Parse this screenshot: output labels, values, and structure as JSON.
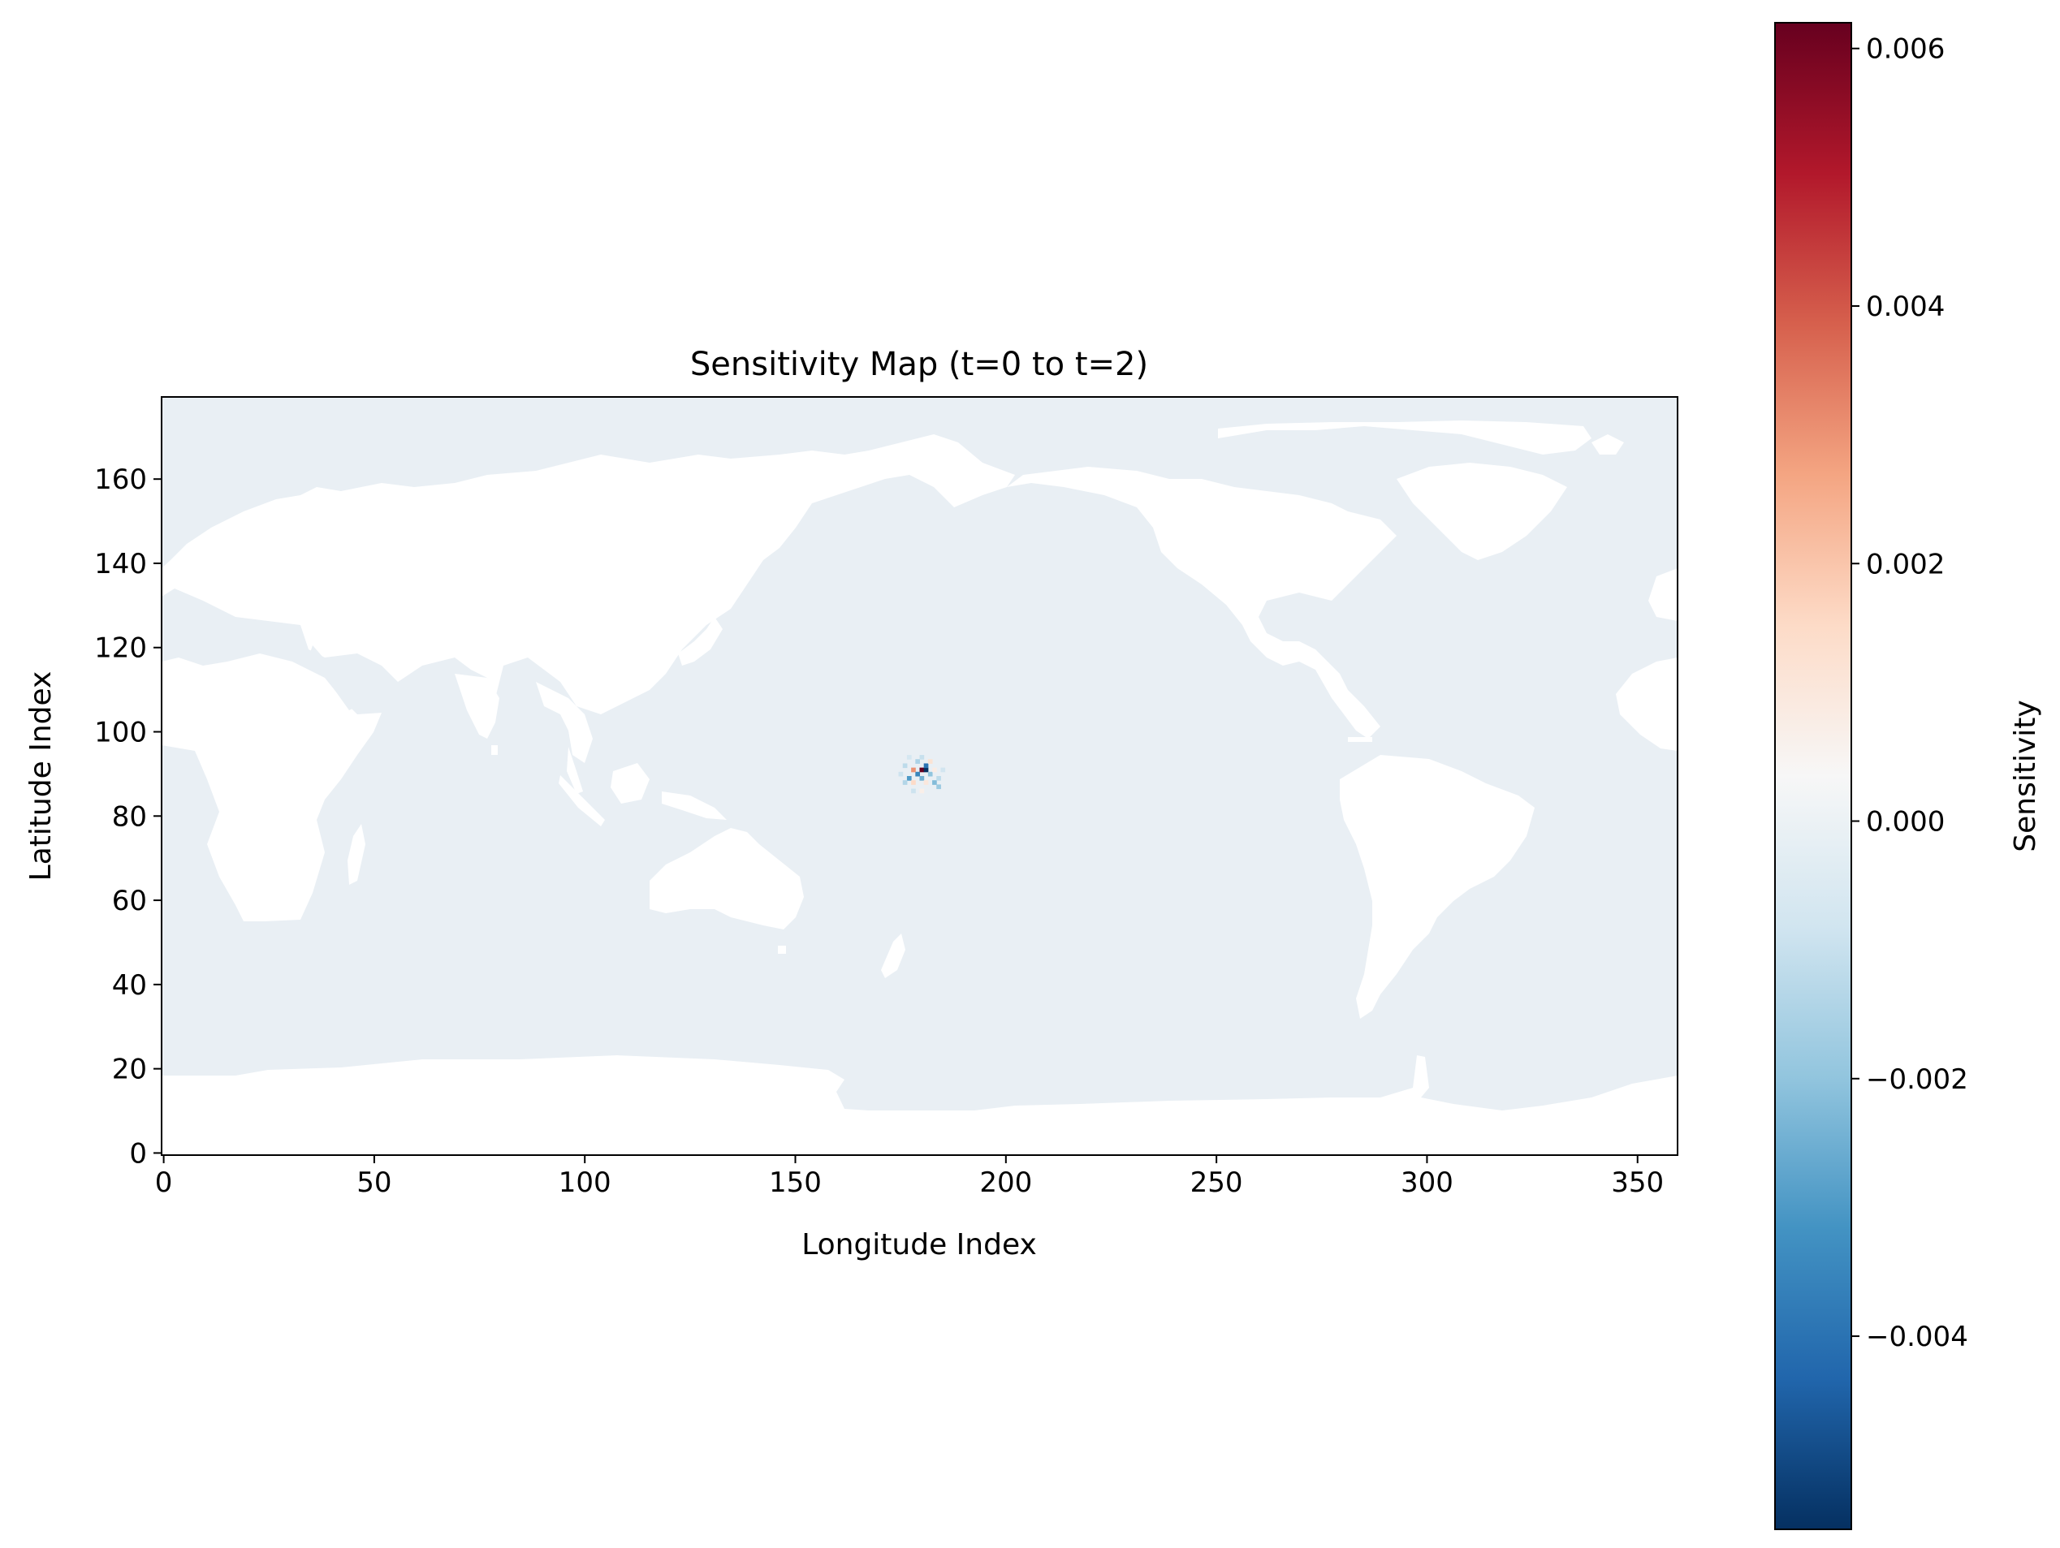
{
  "chart_data": {
    "type": "heatmap",
    "title": "Sensitivity Map (t=0 to t=2)",
    "xlabel": "Longitude Index",
    "ylabel": "Latitude Index",
    "xlim": [
      -0.5,
      359.5
    ],
    "ylim": [
      -0.5,
      179.5
    ],
    "x_ticks": [
      0,
      50,
      100,
      150,
      200,
      250,
      300,
      350
    ],
    "x_tick_labels": [
      "0",
      "50",
      "100",
      "150",
      "200",
      "250",
      "300",
      "350"
    ],
    "y_ticks": [
      0,
      20,
      40,
      60,
      80,
      100,
      120,
      140,
      160
    ],
    "y_tick_labels": [
      "0",
      "20",
      "40",
      "60",
      "80",
      "100",
      "120",
      "140",
      "160"
    ],
    "colorbar": {
      "label": "Sensitivity",
      "colormap": "RdBu_r",
      "range": [
        -0.0055,
        0.0062
      ],
      "ticks": [
        -0.004,
        -0.002,
        0.0,
        0.002,
        0.004,
        0.006
      ],
      "tick_labels": [
        "−0.004",
        "−0.002",
        "0.000",
        "0.002",
        "0.004",
        "0.006"
      ],
      "colors": [
        "#053061",
        "#2166ac",
        "#4393c3",
        "#92c5de",
        "#d1e5f0",
        "#f7f7f7",
        "#fddbc7",
        "#f4a582",
        "#d6604d",
        "#b2182b",
        "#67001f"
      ]
    },
    "ocean_value": -0.0002,
    "ocean_color": "#e9eff4",
    "land_color": "#ffffff",
    "land_value": "masked (no data)",
    "hotspot": {
      "center": [
        180,
        91
      ],
      "values": [
        {
          "x": 180,
          "y": 91,
          "v": 0.0062
        },
        {
          "x": 181,
          "y": 91,
          "v": -0.0055
        },
        {
          "x": 179,
          "y": 90,
          "v": -0.0035
        },
        {
          "x": 178,
          "y": 91,
          "v": 0.003
        },
        {
          "x": 181,
          "y": 92,
          "v": -0.004
        },
        {
          "x": 182,
          "y": 90,
          "v": -0.002
        },
        {
          "x": 177,
          "y": 89,
          "v": -0.003
        },
        {
          "x": 180,
          "y": 89,
          "v": -0.0025
        },
        {
          "x": 183,
          "y": 88,
          "v": -0.0022
        },
        {
          "x": 184,
          "y": 87,
          "v": -0.0018
        },
        {
          "x": 176,
          "y": 92,
          "v": -0.0012
        },
        {
          "x": 179,
          "y": 93,
          "v": -0.0015
        },
        {
          "x": 182,
          "y": 93,
          "v": 0.0012
        },
        {
          "x": 178,
          "y": 88,
          "v": 0.0015
        },
        {
          "x": 181,
          "y": 88,
          "v": 0.001
        },
        {
          "x": 175,
          "y": 90,
          "v": -0.0009
        },
        {
          "x": 185,
          "y": 91,
          "v": -0.0008
        },
        {
          "x": 180,
          "y": 94,
          "v": -0.001
        },
        {
          "x": 176,
          "y": 88,
          "v": -0.0014
        },
        {
          "x": 183,
          "y": 91,
          "v": 0.0008
        },
        {
          "x": 177,
          "y": 94,
          "v": -0.0007
        },
        {
          "x": 184,
          "y": 89,
          "v": -0.0012
        },
        {
          "x": 180,
          "y": 86,
          "v": 0.0007
        },
        {
          "x": 178,
          "y": 86,
          "v": -0.0009
        }
      ]
    }
  }
}
